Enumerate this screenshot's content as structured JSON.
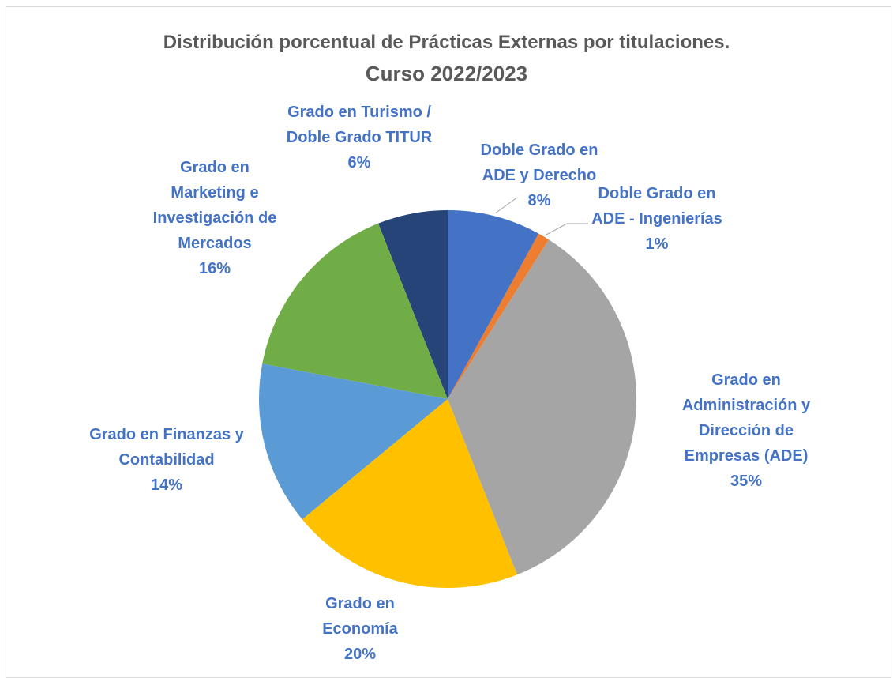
{
  "chart_data": {
    "type": "pie",
    "title": "Distribución porcentual de Prácticas Externas por titulaciones.",
    "subtitle": "Curso 2022/2023",
    "categories": [
      "Doble Grado en ADE y Derecho",
      "Doble Grado en ADE - Ingenierías",
      "Grado en Administración y Dirección de Empresas (ADE)",
      "Grado en Economía",
      "Grado en Finanzas y Contabilidad",
      "Grado en Marketing e Investigación de Mercados",
      "Grado en Turismo / Doble Grado TITUR"
    ],
    "values": [
      8,
      1,
      35,
      20,
      14,
      16,
      6
    ],
    "value_labels": [
      "8%",
      "1%",
      "35%",
      "20%",
      "14%",
      "16%",
      "6%"
    ],
    "colors": [
      "#4472c4",
      "#ed7d31",
      "#a5a5a5",
      "#ffc000",
      "#5b9bd5",
      "#70ad47",
      "#264478"
    ]
  }
}
